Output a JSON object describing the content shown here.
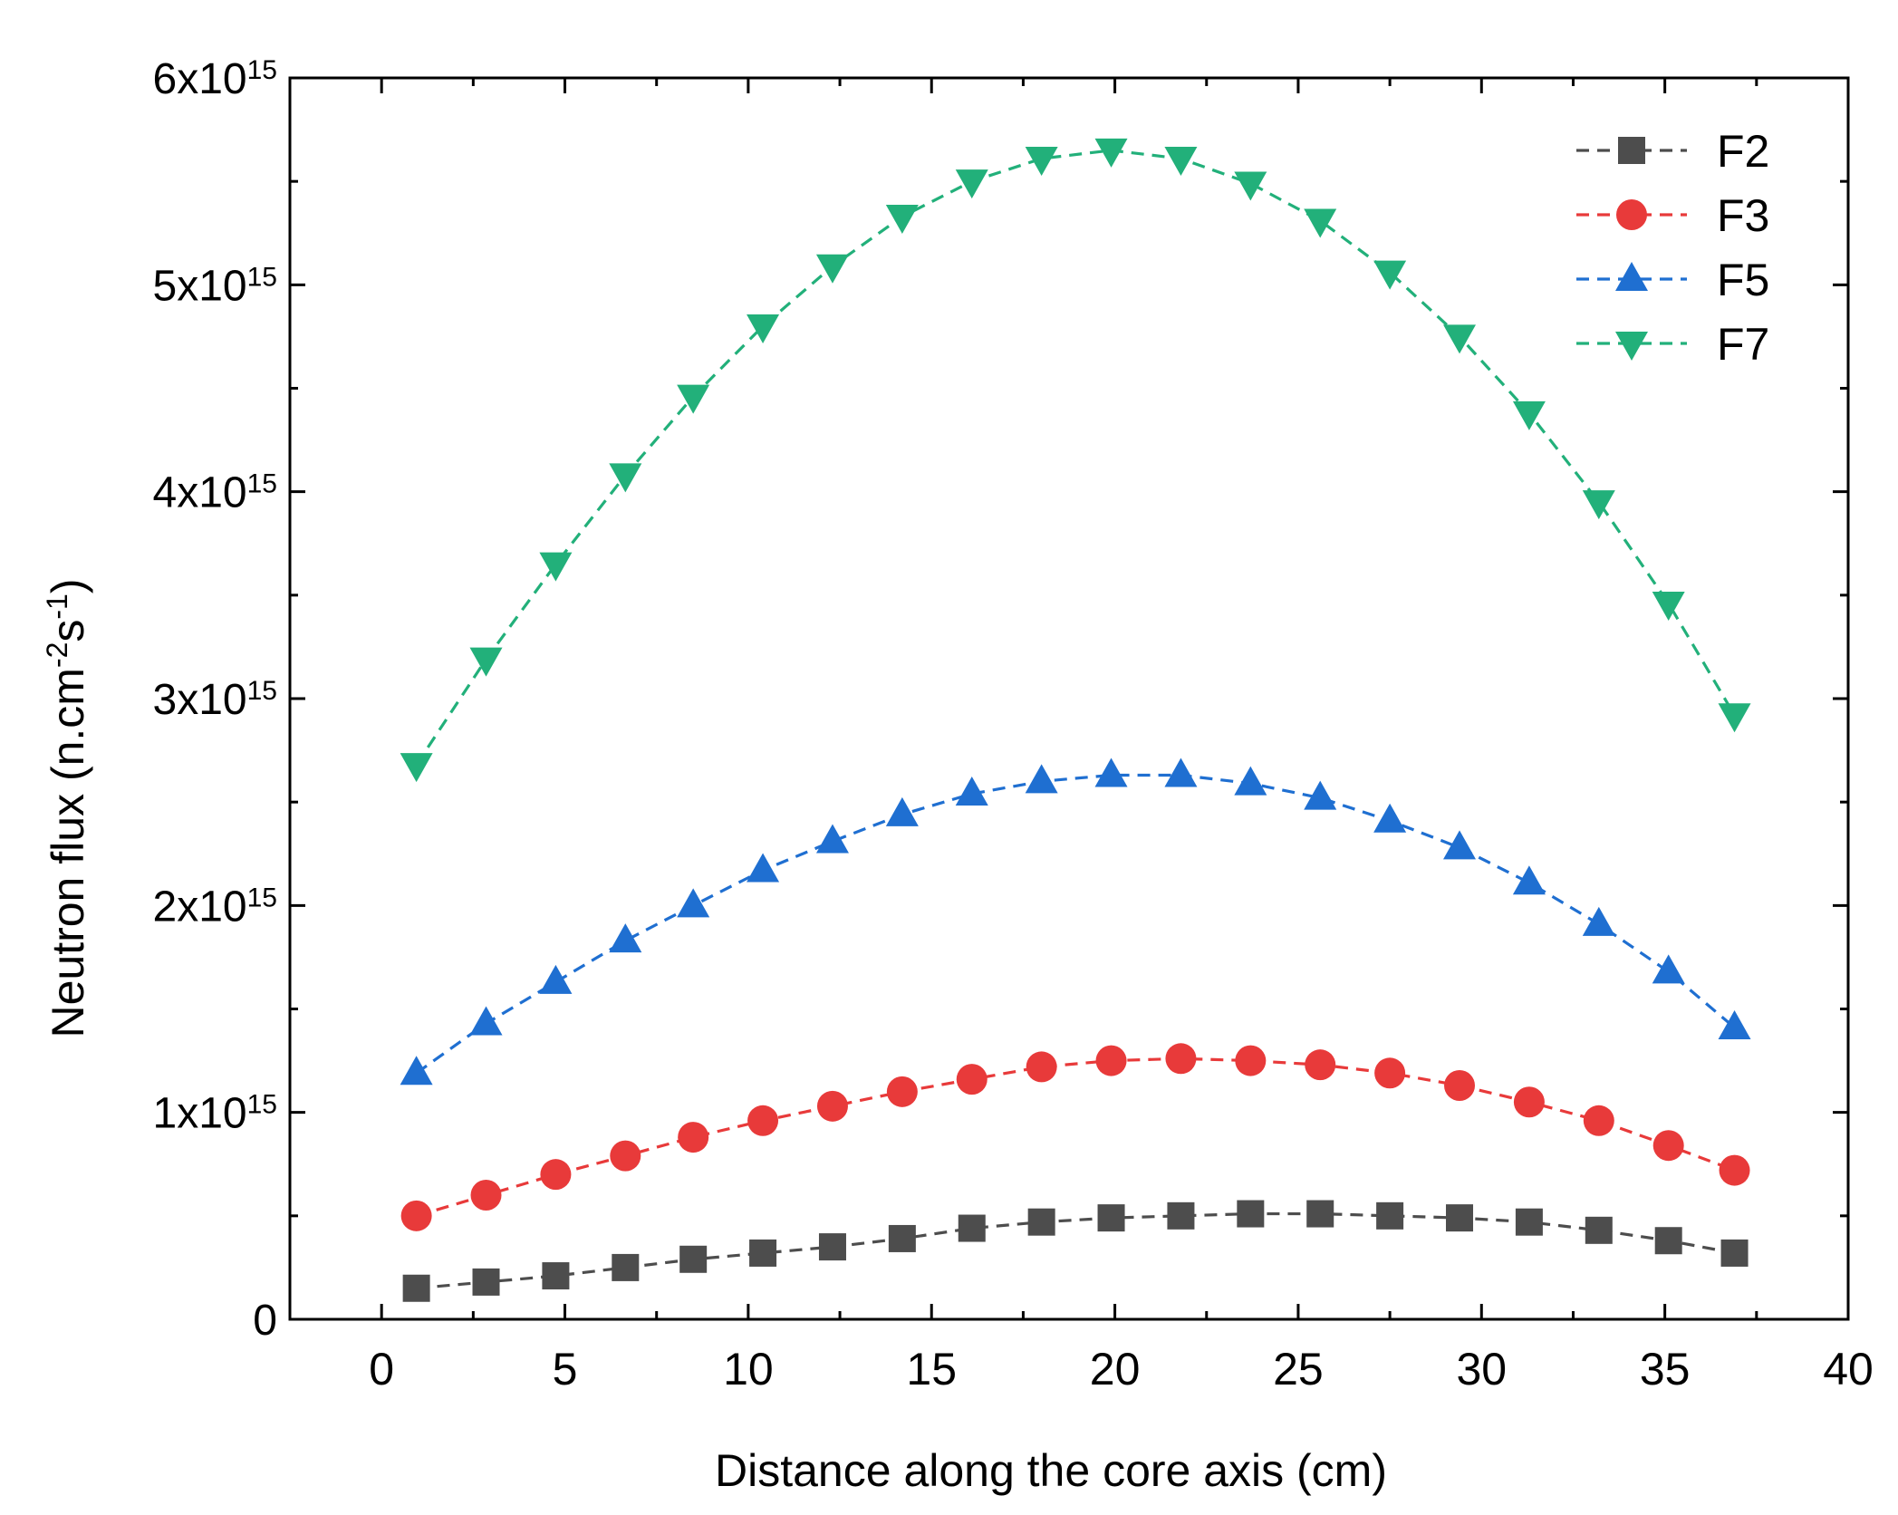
{
  "chart_data": {
    "type": "line",
    "title": "",
    "xlabel": "Distance along the core axis (cm)",
    "ylabel_main": "Neutron flux (n.cm",
    "ylabel_exp1": "-2",
    "ylabel_mid": "s",
    "ylabel_exp2": "-1",
    "ylabel_end": ")",
    "xlim": [
      -2.5,
      40
    ],
    "ylim": [
      0,
      6000000000000000.0
    ],
    "x_ticks": [
      0,
      5,
      10,
      15,
      20,
      25,
      30,
      35,
      40
    ],
    "x_tick_labels": [
      "0",
      "5",
      "10",
      "15",
      "20",
      "25",
      "30",
      "35",
      "40"
    ],
    "y_ticks": [
      0,
      1000000000000000.0,
      2000000000000000.0,
      3000000000000000.0,
      4000000000000000.0,
      5000000000000000.0,
      6000000000000000.0
    ],
    "y_tick_labels": [
      {
        "base": "0",
        "exp": ""
      },
      {
        "base": "1x10",
        "exp": "15"
      },
      {
        "base": "2x10",
        "exp": "15"
      },
      {
        "base": "3x10",
        "exp": "15"
      },
      {
        "base": "4x10",
        "exp": "15"
      },
      {
        "base": "5x10",
        "exp": "15"
      },
      {
        "base": "6x10",
        "exp": "15"
      }
    ],
    "x": [
      0.95,
      2.85,
      4.75,
      6.65,
      8.5,
      10.4,
      12.3,
      14.2,
      16.1,
      18.0,
      19.9,
      21.8,
      23.7,
      25.6,
      27.5,
      29.4,
      31.3,
      33.2,
      35.1,
      36.9
    ],
    "series": [
      {
        "name": "F2",
        "color": "#4d4d4d",
        "marker": "square",
        "values": [
          150000000000000.0,
          180000000000000.0,
          210000000000000.0,
          250000000000000.0,
          290000000000000.0,
          320000000000000.0,
          350000000000000.0,
          390000000000000.0,
          440000000000000.0,
          470000000000000.0,
          490000000000000.0,
          500000000000000.0,
          510000000000000.0,
          510000000000000.0,
          500000000000000.0,
          490000000000000.0,
          470000000000000.0,
          430000000000000.0,
          380000000000000.0,
          320000000000000.0
        ]
      },
      {
        "name": "F3",
        "color": "#e83a3a",
        "marker": "circle",
        "values": [
          500000000000000.0,
          600000000000000.0,
          700000000000000.0,
          790000000000000.0,
          880000000000000.0,
          960000000000000.0,
          1030000000000000.0,
          1100000000000000.0,
          1160000000000000.0,
          1220000000000000.0,
          1250000000000000.0,
          1260000000000000.0,
          1250000000000000.0,
          1230000000000000.0,
          1190000000000000.0,
          1130000000000000.0,
          1050000000000000.0,
          960000000000000.0,
          840000000000000.0,
          720000000000000.0
        ]
      },
      {
        "name": "F5",
        "color": "#1f6fd1",
        "marker": "triangle-up",
        "values": [
          1190000000000000.0,
          1430000000000000.0,
          1630000000000000.0,
          1830000000000000.0,
          2000000000000000.0,
          2170000000000000.0,
          2310000000000000.0,
          2440000000000000.0,
          2540000000000000.0,
          2600000000000000.0,
          2630000000000000.0,
          2630000000000000.0,
          2590000000000000.0,
          2520000000000000.0,
          2410000000000000.0,
          2280000000000000.0,
          2110000000000000.0,
          1910000000000000.0,
          1680000000000000.0,
          1410000000000000.0
        ]
      },
      {
        "name": "F7",
        "color": "#22b07a",
        "marker": "triangle-down",
        "values": [
          2680000000000000.0,
          3190000000000000.0,
          3650000000000000.0,
          4080000000000000.0,
          4460000000000000.0,
          4800000000000000.0,
          5090000000000000.0,
          5330000000000000.0,
          5500000000000000.0,
          5610000000000000.0,
          5650000000000000.0,
          5610000000000000.0,
          5490000000000000.0,
          5310000000000000.0,
          5060000000000000.0,
          4750000000000000.0,
          4380000000000000.0,
          3950000000000000.0,
          3460000000000000.0,
          2920000000000000.0
        ]
      }
    ],
    "legend_position": "top-right",
    "grid": false
  }
}
